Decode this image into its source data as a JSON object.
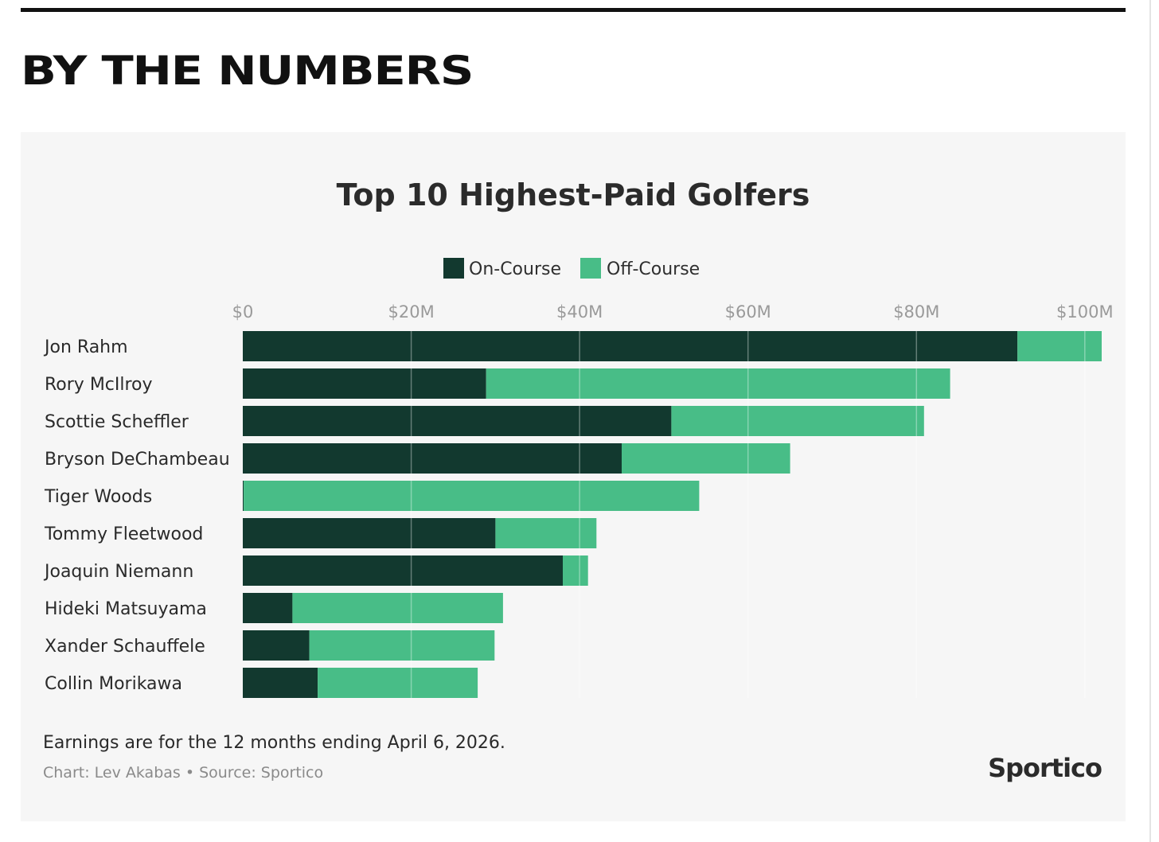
{
  "page": {
    "heading": "BY THE NUMBERS"
  },
  "colors": {
    "on_course": "#12392f",
    "off_course": "#48bd87",
    "background": "#f6f6f6",
    "gridline": "#ffffff"
  },
  "chart_data": {
    "type": "bar",
    "orientation": "horizontal",
    "stacked": true,
    "title": "Top 10 Highest-Paid Golfers",
    "xlabel": "",
    "ylabel": "",
    "xlim": [
      0,
      102
    ],
    "x_ticks": [
      0,
      20,
      40,
      60,
      80,
      100
    ],
    "x_tick_labels": [
      "$0",
      "$20M",
      "$40M",
      "$60M",
      "$80M",
      "$100M"
    ],
    "grid": true,
    "legend_position": "top-center",
    "categories": [
      "Jon Rahm",
      "Rory McIlroy",
      "Scottie Scheffler",
      "Bryson DeChambeau",
      "Tiger Woods",
      "Tommy Fleetwood",
      "Joaquin Niemann",
      "Hideki Matsuyama",
      "Xander Schauffele",
      "Collin Morikawa"
    ],
    "series": [
      {
        "name": "On-Course",
        "color_key": "on_course",
        "values": [
          92,
          28.9,
          50.9,
          45,
          0.1,
          30,
          38,
          5.9,
          7.9,
          8.9
        ]
      },
      {
        "name": "Off-Course",
        "color_key": "off_course",
        "values": [
          10,
          55.1,
          30,
          20,
          54.1,
          12,
          3,
          25,
          22,
          19
        ]
      }
    ],
    "unit": "$M"
  },
  "footer": {
    "note": "Earnings are for the 12 months ending April 6, 2026.",
    "credit": "Chart: Lev Akabas • Source: Sportico",
    "brand": "Sportico"
  }
}
